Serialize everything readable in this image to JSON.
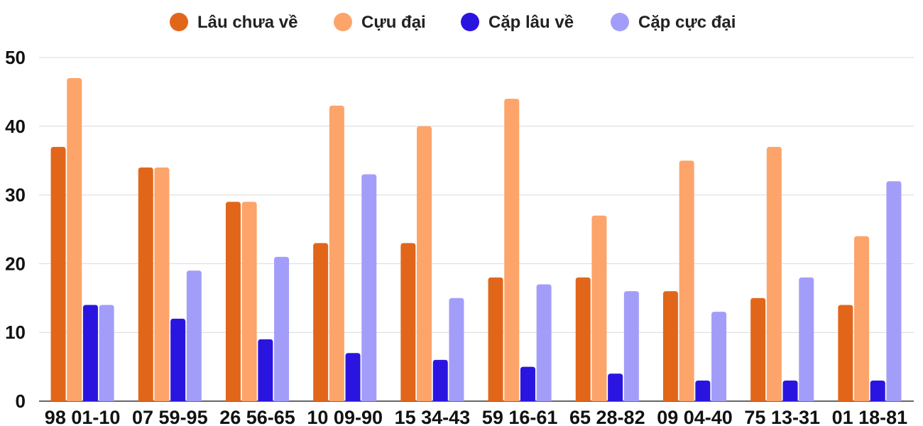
{
  "chart_data": {
    "type": "bar",
    "categories": [
      "98 01-10",
      "07 59-95",
      "26 56-65",
      "10 09-90",
      "15 34-43",
      "59 16-61",
      "65 28-82",
      "09 04-40",
      "75 13-31",
      "01 18-81"
    ],
    "series": [
      {
        "name": "Lâu chưa về",
        "color": "#e2661a",
        "values": [
          37,
          34,
          29,
          23,
          23,
          18,
          18,
          16,
          15,
          14
        ]
      },
      {
        "name": "Cựu đại",
        "color": "#fda46a",
        "values": [
          47,
          34,
          29,
          43,
          40,
          44,
          27,
          35,
          37,
          24
        ]
      },
      {
        "name": "Cặp lâu về",
        "color": "#2a15e0",
        "values": [
          14,
          12,
          9,
          7,
          6,
          5,
          4,
          3,
          3,
          3
        ]
      },
      {
        "name": "Cặp cực đại",
        "color": "#a39dfa",
        "values": [
          14,
          19,
          21,
          33,
          15,
          17,
          16,
          13,
          18,
          32
        ]
      }
    ],
    "ylim": [
      0,
      50
    ],
    "yticks": [
      0,
      10,
      20,
      30,
      40,
      50
    ],
    "grid": true,
    "legend": "top-center"
  }
}
